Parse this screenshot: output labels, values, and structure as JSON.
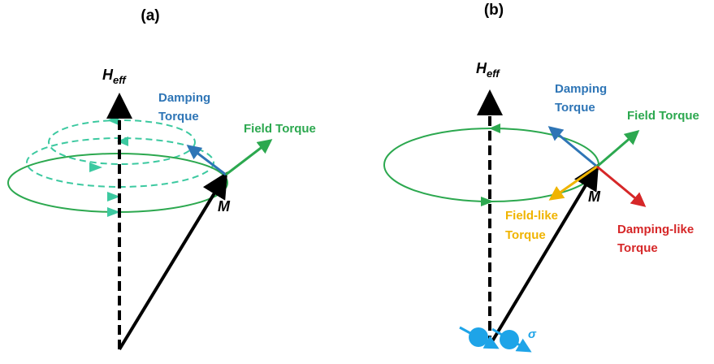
{
  "panels": [
    {
      "title": "(a)",
      "field": {
        "symbol": "H",
        "subscript": "eff"
      },
      "magnetization": "M",
      "damping_torque": [
        "Damping",
        "Torque"
      ],
      "field_torque": "Field Torque"
    },
    {
      "title": "(b)",
      "field": {
        "symbol": "H",
        "subscript": "eff"
      },
      "magnetization": "M",
      "damping_torque": [
        "Damping",
        "Torque"
      ],
      "field_torque": "Field Torque",
      "field_like_torque": [
        "Field-like",
        "Torque"
      ],
      "damping_like_torque": [
        "Damping-like",
        "Torque"
      ],
      "spin": "σ"
    }
  ]
}
